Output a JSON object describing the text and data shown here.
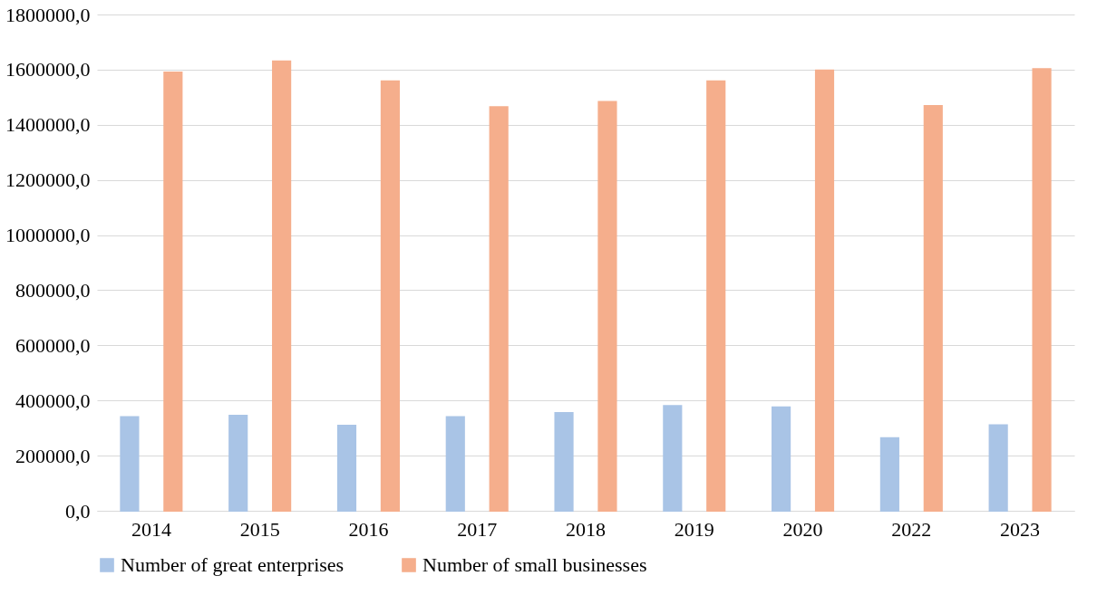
{
  "chart_data": {
    "type": "bar",
    "categories": [
      "2014",
      "2015",
      "2016",
      "2017",
      "2018",
      "2019",
      "2020",
      "2022",
      "2023"
    ],
    "series": [
      {
        "name": "Number of great enterprises",
        "color": "#a9c4e6",
        "values": [
          340000,
          345000,
          309000,
          340000,
          355000,
          380000,
          375000,
          264000,
          310000
        ]
      },
      {
        "name": "Number of small businesses",
        "color": "#f5ae8c",
        "values": [
          1590000,
          1630000,
          1558000,
          1464000,
          1483000,
          1558000,
          1597000,
          1468000,
          1602000
        ]
      }
    ],
    "ylim": [
      0,
      1800000
    ],
    "yticks": [
      {
        "value": 0,
        "label": "0,0"
      },
      {
        "value": 200000,
        "label": "200000,0"
      },
      {
        "value": 400000,
        "label": "400000,0"
      },
      {
        "value": 600000,
        "label": "600000,0"
      },
      {
        "value": 800000,
        "label": "800000,0"
      },
      {
        "value": 1000000,
        "label": "1000000,0"
      },
      {
        "value": 1200000,
        "label": "1200000,0"
      },
      {
        "value": 1400000,
        "label": "1400000,0"
      },
      {
        "value": 1600000,
        "label": "1600000,0"
      },
      {
        "value": 1800000,
        "label": "1800000,0"
      }
    ],
    "grid": "y",
    "legend": "bottom"
  }
}
